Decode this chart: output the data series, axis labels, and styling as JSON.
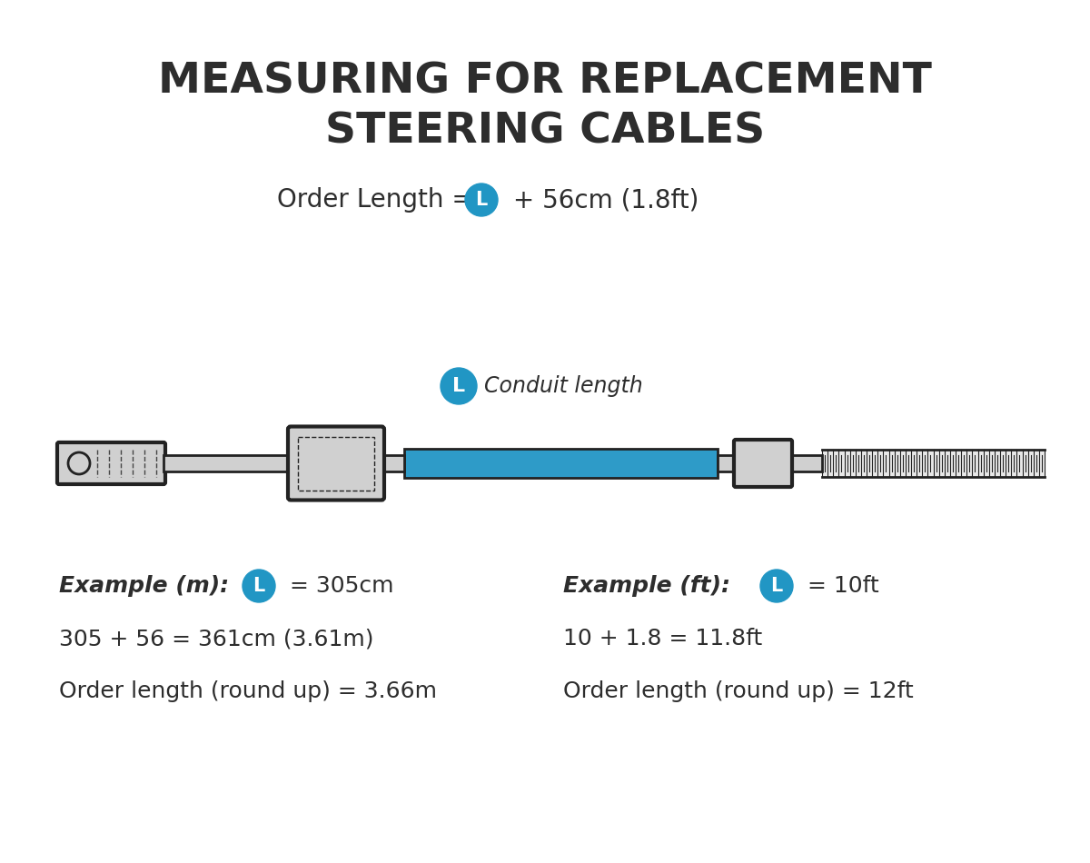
{
  "title_line1": "MEASURING FOR REPLACEMENT",
  "title_line2": "STEERING CABLES",
  "title_fontsize": 34,
  "title_color": "#2d2d2d",
  "formula_text_pre": "Order Length = ",
  "formula_text_post": " + 56cm (1.8ft)",
  "formula_fontsize": 20,
  "badge_color": "#2196c4",
  "badge_label": "L",
  "badge_fontsize": 15,
  "conduit_label": "Conduit length",
  "conduit_label_fontsize": 17,
  "cable_blue_color": "#2e9bc8",
  "cable_dark_color": "#222222",
  "cable_gray_color": "#d0d0d0",
  "cable_mid_color": "#aaaaaa",
  "example_m_bold": "Example (m):",
  "example_m_eq": " = 305cm",
  "example_m_line2": "305 + 56 = 361cm (3.61m)",
  "example_m_line3": "Order length (round up) = 3.66m",
  "example_ft_bold": "Example (ft):",
  "example_ft_eq": " = 10ft",
  "example_ft_line2": "10 + 1.8 = 11.8ft",
  "example_ft_line3": "Order length (round up) = 12ft",
  "example_fontsize": 18,
  "bg_color": "#ffffff",
  "text_color": "#2d2d2d"
}
